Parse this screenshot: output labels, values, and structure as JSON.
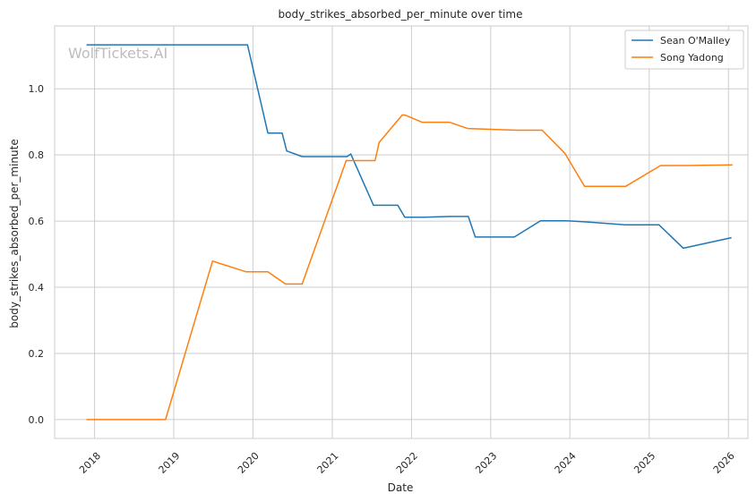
{
  "watermark": "WolfTickets.AI",
  "chart_data": {
    "type": "line",
    "title": "body_strikes_absorbed_per_minute over time",
    "xlabel": "Date",
    "ylabel": "body_strikes_absorbed_per_minute",
    "xlim": [
      "2017-07-01",
      "2026-04-01"
    ],
    "ylim": [
      -0.057,
      1.19
    ],
    "x_ticks": [
      "2018",
      "2019",
      "2020",
      "2021",
      "2022",
      "2023",
      "2024",
      "2025",
      "2026"
    ],
    "y_ticks": [
      "0.0",
      "0.2",
      "0.4",
      "0.6",
      "0.8",
      "1.0"
    ],
    "y_tick_values": [
      0,
      0.2,
      0.4,
      0.6,
      0.8,
      1.0
    ],
    "grid": true,
    "legend_position": "top-right",
    "series": [
      {
        "name": "Sean O'Malley",
        "color": "#1f77b4",
        "points": [
          [
            "2017-11-25",
            1.133
          ],
          [
            "2019-12-07",
            1.133
          ],
          [
            "2020-03-10",
            0.866
          ],
          [
            "2020-05-15",
            0.866
          ],
          [
            "2020-06-05",
            0.812
          ],
          [
            "2020-08-15",
            0.795
          ],
          [
            "2021-03-10",
            0.795
          ],
          [
            "2021-03-27",
            0.803
          ],
          [
            "2021-07-10",
            0.648
          ],
          [
            "2021-10-30",
            0.648
          ],
          [
            "2021-12-01",
            0.612
          ],
          [
            "2022-03-01",
            0.612
          ],
          [
            "2022-07-01",
            0.614
          ],
          [
            "2022-09-20",
            0.614
          ],
          [
            "2022-10-22",
            0.552
          ],
          [
            "2023-04-20",
            0.552
          ],
          [
            "2023-08-19",
            0.601
          ],
          [
            "2023-12-15",
            0.601
          ],
          [
            "2024-03-09",
            0.598
          ],
          [
            "2024-09-14",
            0.589
          ],
          [
            "2025-02-15",
            0.589
          ],
          [
            "2025-06-07",
            0.518
          ],
          [
            "2026-01-15",
            0.55
          ]
        ]
      },
      {
        "name": "Song Yadong",
        "color": "#ff7f0e",
        "points": [
          [
            "2017-11-25",
            0.0
          ],
          [
            "2018-11-24",
            0.0
          ],
          [
            "2019-06-29",
            0.479
          ],
          [
            "2019-11-30",
            0.447
          ],
          [
            "2020-03-10",
            0.447
          ],
          [
            "2020-05-30",
            0.41
          ],
          [
            "2020-08-15",
            0.41
          ],
          [
            "2021-03-06",
            0.783
          ],
          [
            "2021-07-17",
            0.783
          ],
          [
            "2021-08-05",
            0.838
          ],
          [
            "2021-11-20",
            0.921
          ],
          [
            "2021-12-05",
            0.92
          ],
          [
            "2022-02-19",
            0.899
          ],
          [
            "2022-06-25",
            0.899
          ],
          [
            "2022-09-17",
            0.88
          ],
          [
            "2023-04-29",
            0.875
          ],
          [
            "2023-08-26",
            0.875
          ],
          [
            "2023-12-09",
            0.805
          ],
          [
            "2024-03-09",
            0.705
          ],
          [
            "2024-09-14",
            0.705
          ],
          [
            "2025-02-22",
            0.768
          ],
          [
            "2025-06-21",
            0.768
          ],
          [
            "2026-01-20",
            0.77
          ]
        ]
      }
    ]
  }
}
